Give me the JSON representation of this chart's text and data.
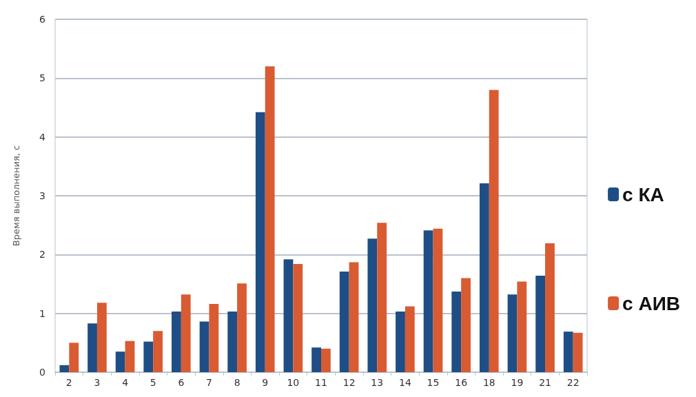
{
  "chart_data": {
    "type": "bar",
    "ylabel": "Время выполнения, с",
    "categories": [
      "2",
      "3",
      "4",
      "5",
      "6",
      "7",
      "8",
      "9",
      "10",
      "11",
      "12",
      "13",
      "14",
      "15",
      "16",
      "18",
      "19",
      "21",
      "22"
    ],
    "series": [
      {
        "name": "с КА",
        "color": "#1f4e86",
        "values": [
          0.12,
          0.83,
          0.35,
          0.52,
          1.03,
          0.86,
          1.03,
          4.42,
          1.92,
          0.42,
          1.71,
          2.27,
          1.03,
          2.41,
          1.37,
          3.21,
          1.32,
          1.64,
          0.69
        ]
      },
      {
        "name": "с АИВ",
        "color": "#d95b32",
        "values": [
          0.5,
          1.18,
          0.53,
          0.7,
          1.32,
          1.16,
          1.51,
          5.2,
          1.84,
          0.4,
          1.87,
          2.54,
          1.12,
          2.44,
          1.6,
          4.8,
          1.54,
          2.19,
          0.67
        ]
      }
    ],
    "ylim": [
      0,
      6
    ],
    "yticks": [
      0,
      1,
      2,
      3,
      4,
      5,
      6
    ],
    "grid": "y",
    "legend": "right"
  }
}
